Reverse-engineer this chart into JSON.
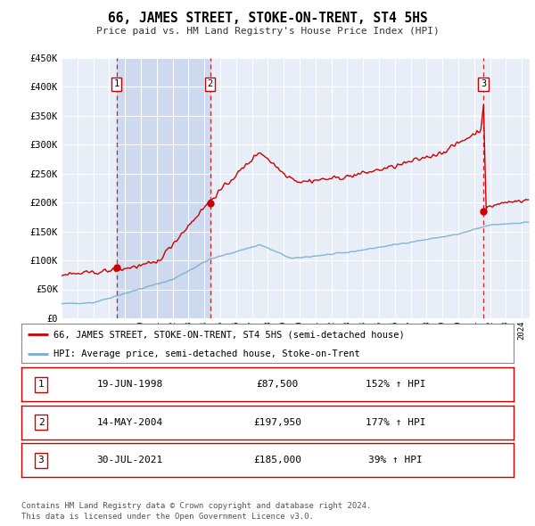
{
  "title": "66, JAMES STREET, STOKE-ON-TRENT, ST4 5HS",
  "subtitle": "Price paid vs. HM Land Registry's House Price Index (HPI)",
  "red_label": "66, JAMES STREET, STOKE-ON-TRENT, ST4 5HS (semi-detached house)",
  "blue_label": "HPI: Average price, semi-detached house, Stoke-on-Trent",
  "footer1": "Contains HM Land Registry data © Crown copyright and database right 2024.",
  "footer2": "This data is licensed under the Open Government Licence v3.0.",
  "ylim": [
    0,
    450000
  ],
  "yticks": [
    0,
    50000,
    100000,
    150000,
    200000,
    250000,
    300000,
    350000,
    400000,
    450000
  ],
  "ytick_labels": [
    "£0",
    "£50K",
    "£100K",
    "£150K",
    "£200K",
    "£250K",
    "£300K",
    "£350K",
    "£400K",
    "£450K"
  ],
  "xmin": 1995.0,
  "xmax": 2024.5,
  "sale_dates": [
    1998.46,
    2004.37,
    2021.58
  ],
  "sale_prices": [
    87500,
    197950,
    185000
  ],
  "sale_labels": [
    "1",
    "2",
    "3"
  ],
  "sale_info": [
    [
      "19-JUN-1998",
      "£87,500",
      "152% ↑ HPI"
    ],
    [
      "14-MAY-2004",
      "£197,950",
      "177% ↑ HPI"
    ],
    [
      "30-JUL-2021",
      "£185,000",
      "39% ↑ HPI"
    ]
  ],
  "background_color": "#e8eef8",
  "red_color": "#cc0000",
  "blue_color": "#7aadcc",
  "dashed_color": "#cc0000",
  "shade_color": "#ccd9ee"
}
